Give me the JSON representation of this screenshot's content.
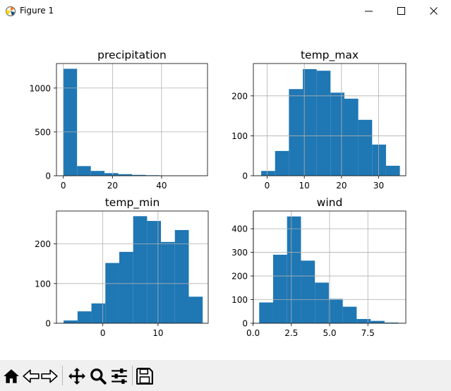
{
  "window": {
    "title": "Figure 1"
  },
  "toolbar": {
    "buttons": [
      {
        "icon": "home-icon"
      },
      {
        "icon": "back-arrow-icon"
      },
      {
        "icon": "forward-arrow-icon"
      },
      {
        "icon": "pan-icon"
      },
      {
        "icon": "zoom-icon"
      },
      {
        "icon": "subplots-config-icon"
      },
      {
        "icon": "save-icon"
      }
    ]
  },
  "colors": {
    "bar": "#1f77b4",
    "grid": "#b0b0b0"
  },
  "chart_data": [
    {
      "type": "bar",
      "title": "precipitation",
      "xlim": [
        -2.8,
        58.7
      ],
      "ylim": [
        0,
        1280
      ],
      "xticks": [
        0,
        20,
        40
      ],
      "yticks": [
        0,
        500,
        1000
      ],
      "grid": true,
      "bin_edges": [
        0,
        5.59,
        11.18,
        16.77,
        22.36,
        27.95,
        33.54,
        39.13,
        44.72,
        50.31,
        55.9
      ],
      "values": [
        1220,
        110,
        55,
        30,
        18,
        10,
        6,
        2,
        2,
        1
      ]
    },
    {
      "type": "bar",
      "title": "temp_max",
      "xlim": [
        -3.7,
        37.3
      ],
      "ylim": [
        0,
        281
      ],
      "xticks": [
        0,
        10,
        20,
        30
      ],
      "yticks": [
        0,
        100,
        200
      ],
      "grid": true,
      "bin_edges": [
        -1.6,
        2.13,
        5.86,
        9.59,
        13.32,
        17.05,
        20.78,
        24.51,
        28.24,
        31.97,
        35.7
      ],
      "values": [
        12,
        62,
        217,
        267,
        263,
        208,
        193,
        140,
        78,
        25
      ]
    },
    {
      "type": "bar",
      "title": "temp_min",
      "xlim": [
        -8.4,
        19.1
      ],
      "ylim": [
        0,
        283
      ],
      "xticks": [
        0,
        10
      ],
      "yticks": [
        0,
        100,
        200
      ],
      "grid": true,
      "bin_edges": [
        -7.1,
        -4.58,
        -2.06,
        0.46,
        2.98,
        5.5,
        8.02,
        10.54,
        13.06,
        15.58,
        18.1
      ],
      "values": [
        7,
        30,
        50,
        152,
        180,
        270,
        258,
        205,
        235,
        67
      ]
    },
    {
      "type": "bar",
      "title": "wind",
      "xlim": [
        0.02,
        9.98
      ],
      "ylim": [
        0,
        475
      ],
      "xticks": [
        0.0,
        2.5,
        5.0,
        7.5
      ],
      "xtick_labels": [
        "0.0",
        "2.5",
        "5.0",
        "7.5"
      ],
      "yticks": [
        0,
        100,
        200,
        300,
        400
      ],
      "grid": true,
      "bin_edges": [
        0.4,
        1.31,
        2.22,
        3.13,
        4.04,
        4.95,
        5.86,
        6.77,
        7.68,
        8.59,
        9.5
      ],
      "values": [
        88,
        290,
        452,
        265,
        172,
        103,
        70,
        18,
        10,
        3
      ]
    }
  ]
}
